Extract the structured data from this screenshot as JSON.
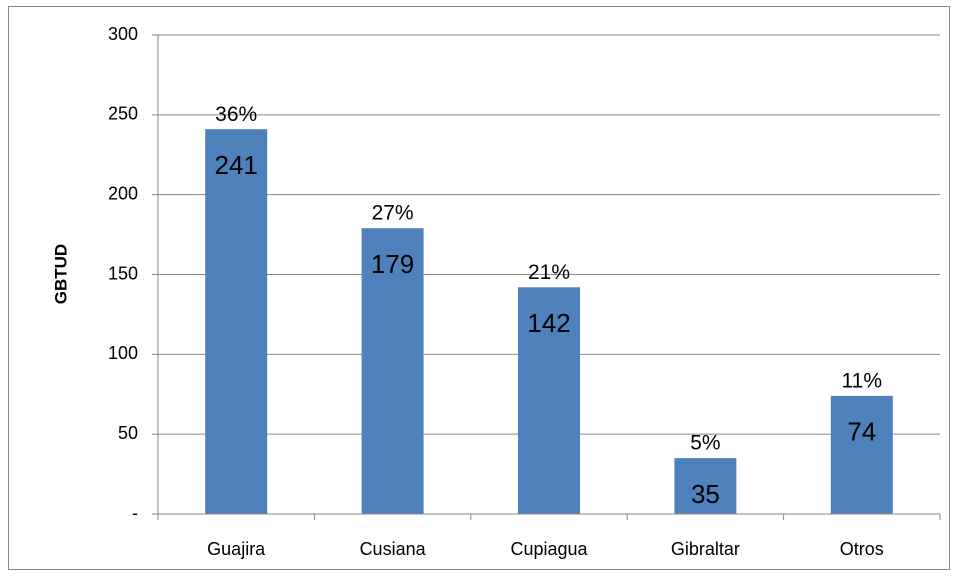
{
  "chart_data": {
    "type": "bar",
    "y_axis_label": "GBTUD",
    "categories": [
      "Guajira",
      "Cusiana",
      "Cupiagua",
      "Gibraltar",
      "Otros"
    ],
    "values": [
      241,
      179,
      142,
      35,
      74
    ],
    "percent_labels": [
      "36%",
      "27%",
      "21%",
      "5%",
      "11%"
    ],
    "color": "#4f81bd",
    "ylim": [
      0,
      300
    ],
    "yticks": [
      {
        "value": 0,
        "label": "-"
      },
      50,
      100,
      150,
      200,
      250,
      300
    ],
    "grid": true
  }
}
